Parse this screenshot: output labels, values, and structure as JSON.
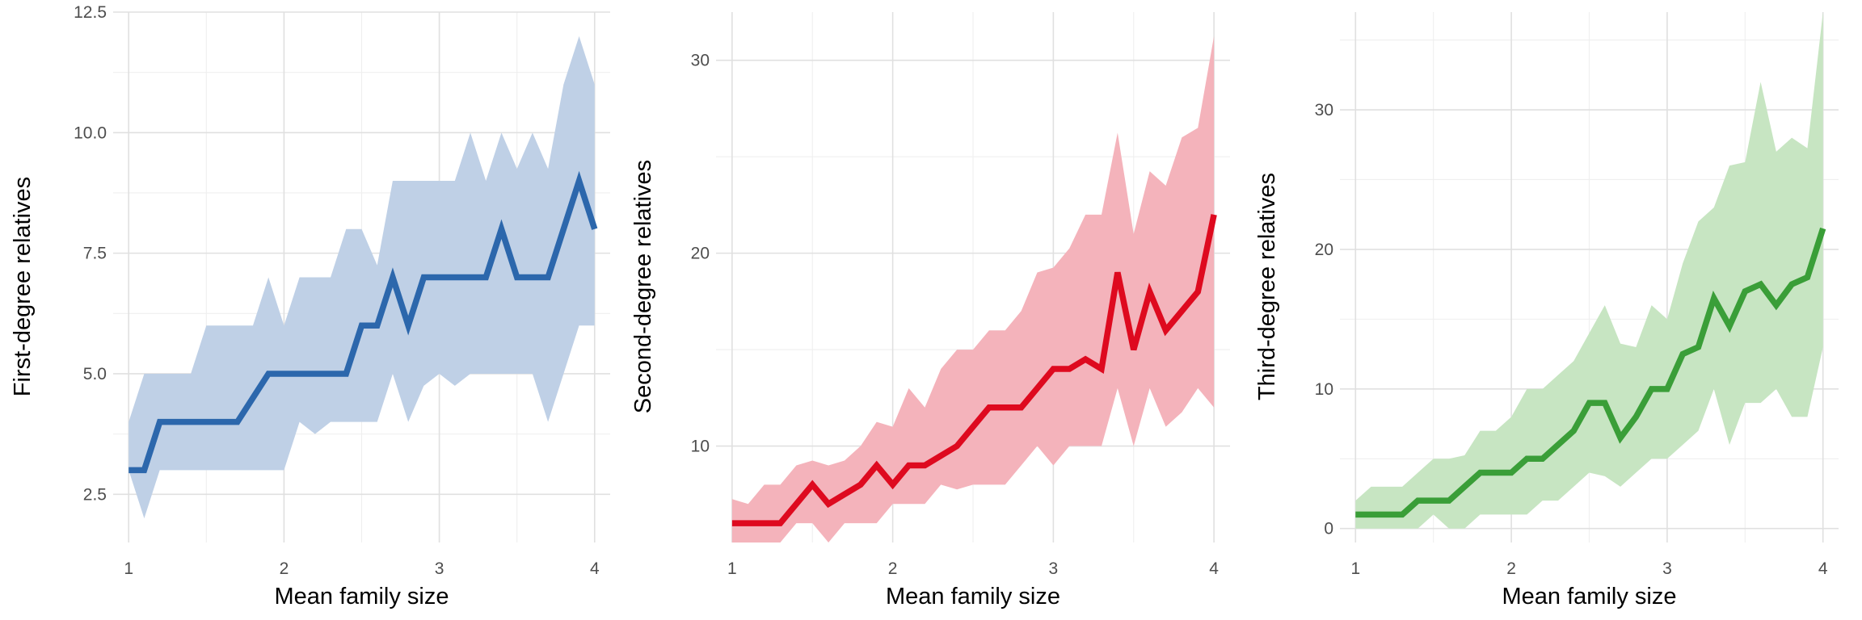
{
  "chart_data": [
    {
      "type": "line",
      "xlabel": "Mean family size",
      "ylabel": "First-degree relatives",
      "xlim": [
        0.9,
        4.1
      ],
      "ylim": [
        1.5,
        12.5
      ],
      "xticks": [
        1,
        2,
        3,
        4
      ],
      "xtick_labels": [
        "1",
        "2",
        "3",
        "4"
      ],
      "yticks": [
        2.5,
        5.0,
        7.5,
        10.0,
        12.5
      ],
      "ytick_labels": [
        "2.5",
        "5.0",
        "7.5",
        "10.0",
        "12.5"
      ],
      "grid": true,
      "line_color": "#2c67ac",
      "band_color": "#bfd0e6",
      "series": [
        {
          "x": [
            1.0,
            1.1,
            1.2,
            1.3,
            1.4,
            1.5,
            1.6,
            1.7,
            1.8,
            1.9,
            2.0,
            2.1,
            2.2,
            2.3,
            2.4,
            2.5,
            2.6,
            2.7,
            2.8,
            2.9,
            3.0,
            3.1,
            3.2,
            3.3,
            3.4,
            3.5,
            3.6,
            3.7,
            3.8,
            3.9,
            4.0
          ],
          "median": [
            3,
            3,
            4,
            4,
            4,
            4,
            4,
            4,
            4.5,
            5,
            5,
            5,
            5,
            5,
            5,
            6,
            6,
            7,
            6,
            7,
            7,
            7,
            7,
            7,
            8,
            7,
            7,
            7,
            8,
            9,
            8
          ],
          "lower": [
            3,
            2,
            3,
            3,
            3,
            3,
            3,
            3,
            3,
            3,
            3,
            4,
            3.75,
            4,
            4,
            4,
            4,
            5,
            4,
            4.75,
            5,
            4.75,
            5,
            5,
            5,
            5,
            5,
            4,
            5,
            6,
            6
          ],
          "upper": [
            4,
            5,
            5,
            5,
            5,
            6,
            6,
            6,
            6,
            7,
            6,
            7,
            7,
            7,
            8,
            8,
            7.25,
            9,
            9,
            9,
            9,
            9,
            10,
            9,
            10,
            9.25,
            10,
            9.25,
            11,
            12,
            11
          ]
        }
      ]
    },
    {
      "type": "line",
      "xlabel": "Mean family size",
      "ylabel": "Second-degree relatives",
      "xlim": [
        0.9,
        4.1
      ],
      "ylim": [
        5,
        32.5
      ],
      "xticks": [
        1,
        2,
        3,
        4
      ],
      "xtick_labels": [
        "1",
        "2",
        "3",
        "4"
      ],
      "yticks": [
        10,
        20,
        30
      ],
      "ytick_labels": [
        "10",
        "20",
        "30"
      ],
      "grid": true,
      "line_color": "#de0a1f",
      "band_color": "#f4b3bb",
      "series": [
        {
          "x": [
            1.0,
            1.1,
            1.2,
            1.3,
            1.4,
            1.5,
            1.6,
            1.7,
            1.8,
            1.9,
            2.0,
            2.1,
            2.2,
            2.3,
            2.4,
            2.5,
            2.6,
            2.7,
            2.8,
            2.9,
            3.0,
            3.1,
            3.2,
            3.3,
            3.4,
            3.5,
            3.6,
            3.7,
            3.8,
            3.9,
            4.0
          ],
          "median": [
            6,
            6,
            6,
            6,
            7,
            8,
            7,
            7.5,
            8,
            9,
            8,
            9,
            9,
            9.5,
            10,
            11,
            12,
            12,
            12,
            13,
            14,
            14,
            14.5,
            14,
            19,
            15,
            18,
            16,
            17,
            18,
            22
          ],
          "lower": [
            5,
            5,
            5,
            5,
            6,
            6,
            5,
            6,
            6,
            6,
            7,
            7,
            7,
            8,
            7.75,
            8,
            8,
            8,
            9,
            10,
            9,
            10,
            10,
            10,
            13,
            10,
            13,
            11,
            11.75,
            13,
            12
          ],
          "upper": [
            7.25,
            7,
            8,
            8,
            9,
            9.25,
            9,
            9.25,
            10,
            11.25,
            11,
            13,
            12,
            14,
            15,
            15,
            16,
            16,
            17,
            19,
            19.25,
            20.25,
            22,
            22,
            26.25,
            21,
            24.25,
            23.5,
            26,
            26.5,
            31.25
          ]
        }
      ]
    },
    {
      "type": "line",
      "xlabel": "Mean family size",
      "ylabel": "Third-degree relatives",
      "xlim": [
        0.9,
        4.1
      ],
      "ylim": [
        -1,
        37
      ],
      "xticks": [
        1,
        2,
        3,
        4
      ],
      "xtick_labels": [
        "1",
        "2",
        "3",
        "4"
      ],
      "yticks": [
        0,
        10,
        20,
        30
      ],
      "ytick_labels": [
        "0",
        "10",
        "20",
        "30"
      ],
      "grid": true,
      "line_color": "#3a9e38",
      "band_color": "#c7e5c2",
      "series": [
        {
          "x": [
            1.0,
            1.1,
            1.2,
            1.3,
            1.4,
            1.5,
            1.6,
            1.7,
            1.8,
            1.9,
            2.0,
            2.1,
            2.2,
            2.3,
            2.4,
            2.5,
            2.6,
            2.7,
            2.8,
            2.9,
            3.0,
            3.1,
            3.2,
            3.3,
            3.4,
            3.5,
            3.6,
            3.7,
            3.8,
            3.9,
            4.0
          ],
          "median": [
            1,
            1,
            1,
            1,
            2,
            2,
            2,
            3,
            4,
            4,
            4,
            5,
            5,
            6,
            7,
            9,
            9,
            6.5,
            8,
            10,
            10,
            12.5,
            13,
            16.5,
            14.5,
            17,
            17.5,
            16,
            17.5,
            18,
            21.5
          ],
          "lower": [
            0,
            0,
            0,
            0,
            0,
            1,
            0,
            0,
            1,
            1,
            1,
            1,
            2,
            2,
            3,
            4,
            3.75,
            3,
            4,
            5,
            5,
            6,
            7,
            10,
            6,
            9,
            9,
            10,
            8,
            8,
            13
          ],
          "upper": [
            2,
            3,
            3,
            3,
            4,
            5,
            5,
            5.25,
            7,
            7,
            8,
            10,
            10,
            11,
            12,
            14,
            16,
            13.25,
            13,
            16,
            15,
            19,
            22,
            23,
            26,
            26.25,
            32,
            27,
            28,
            27.25,
            37
          ]
        }
      ]
    }
  ]
}
